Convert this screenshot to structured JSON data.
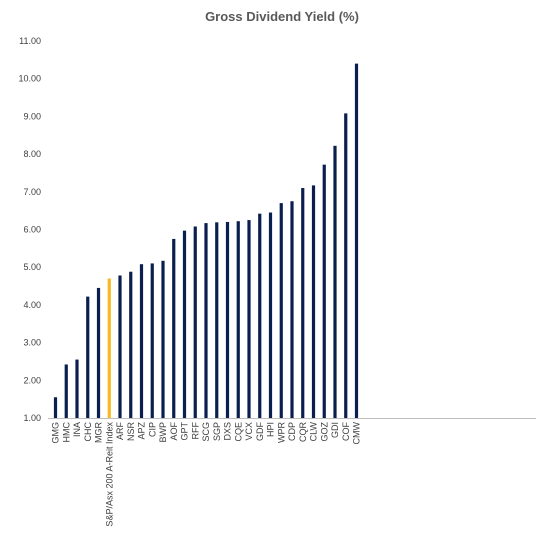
{
  "chart_data": {
    "type": "bar",
    "title": "Gross Dividend Yield (%)",
    "xlabel": "",
    "ylabel": "",
    "ylim": [
      1.0,
      11.0
    ],
    "yticks": [
      "1.00",
      "2.00",
      "3.00",
      "4.00",
      "5.00",
      "6.00",
      "7.00",
      "8.00",
      "9.00",
      "10.00",
      "11.00"
    ],
    "grid": false,
    "legend": "none",
    "colors": {
      "bar": "#0b1f4f",
      "highlight": "#f6b923",
      "axis": "#bfbfbf"
    },
    "highlight_category": "S&P/Asx 200 A-Reit Index",
    "categories": [
      "GMG",
      "HMC",
      "INA",
      "CHC",
      "MGR",
      "S&P/Asx 200 A-Reit Index",
      "ARF",
      "NSR",
      "APZ",
      "CIP",
      "BWP",
      "AOF",
      "GPT",
      "RFF",
      "SCG",
      "SGP",
      "DXS",
      "CQE",
      "VCX",
      "GDF",
      "HPI",
      "WPR",
      "CDP",
      "CQR",
      "CLW",
      "GOZ",
      "GDI",
      "COF",
      "CMW"
    ],
    "values": [
      1.55,
      2.42,
      2.55,
      4.22,
      4.45,
      4.7,
      4.78,
      4.88,
      5.08,
      5.1,
      5.17,
      5.75,
      5.97,
      6.08,
      6.17,
      6.19,
      6.2,
      6.22,
      6.25,
      6.42,
      6.45,
      6.7,
      6.75,
      7.1,
      7.17,
      7.72,
      8.22,
      9.08,
      10.4
    ]
  }
}
